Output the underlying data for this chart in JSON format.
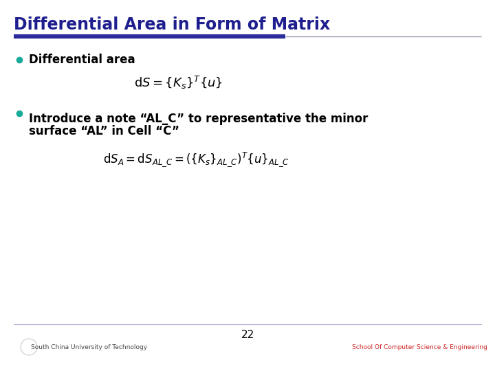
{
  "title": "Differential Area in Form of Matrix",
  "title_color": "#1e1e8f",
  "title_fontsize": 17,
  "bg_color": "#ffffff",
  "divider_thick_color": "#2b2b9e",
  "divider_thin_color": "#9999bb",
  "bullet_color": "#1aaa9a",
  "bullet1_text": "Differential area",
  "bullet2_line1": "Introduce a note “AL_C” to representative the minor",
  "bullet2_line2": "surface “AL” in Cell “C”",
  "formula1": "$\\mathrm{d}S = \\{K_s\\}^{T}\\{u\\}$",
  "formula2": "$\\mathrm{d}S_A = \\mathrm{d}S_{AL\\_C} = (\\{K_s\\}_{AL\\_C})^{T}\\{u\\}_{AL\\_C}$",
  "page_number": "22",
  "text_color": "#000000",
  "body_fontsize": 12,
  "formula_fontsize": 12,
  "footer_left_color": "#444444",
  "footer_right_color": "#cc2222"
}
